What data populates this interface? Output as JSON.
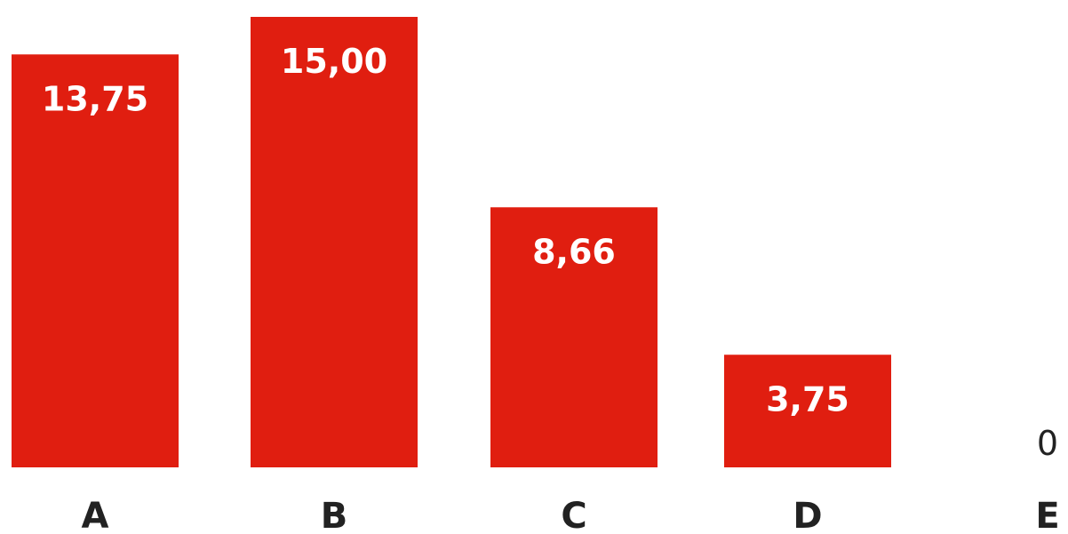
{
  "chart_data": {
    "type": "bar",
    "categories": [
      "A",
      "B",
      "C",
      "D",
      "E"
    ],
    "values": [
      13.75,
      15.0,
      8.66,
      3.75,
      0
    ],
    "value_labels": [
      "13,75",
      "15,00",
      "8,66",
      "3,75",
      "0"
    ],
    "title": "",
    "xlabel": "",
    "ylabel": "",
    "ylim": [
      0,
      15
    ],
    "grid": false,
    "bar_color": "#e01e10",
    "label_color_inside": "#ffffff",
    "label_color_outside": "#222222",
    "category_color": "#222222"
  }
}
